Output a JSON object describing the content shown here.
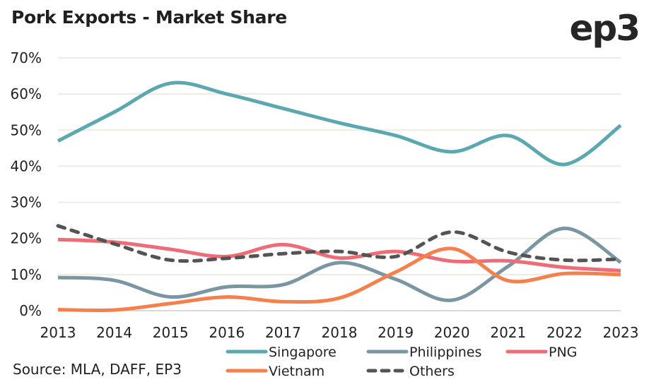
{
  "header": {
    "title": "Pork Exports - Market Share",
    "logo": "ep3"
  },
  "source": "Source: MLA, DAFF, EP3",
  "chart_data": {
    "type": "line",
    "title": "Pork Exports - Market Share",
    "xlabel": "",
    "ylabel": "",
    "x": [
      2013,
      2014,
      2015,
      2016,
      2017,
      2018,
      2019,
      2020,
      2021,
      2022,
      2023
    ],
    "x_tick_labels": [
      "2013",
      "2014",
      "2015",
      "2016",
      "2017",
      "2018",
      "2019",
      "2020",
      "2021",
      "2022",
      "2023"
    ],
    "ylim": [
      0,
      70
    ],
    "y_ticks": [
      0,
      10,
      20,
      30,
      40,
      50,
      60,
      70
    ],
    "y_tick_labels": [
      "0%",
      "10%",
      "20%",
      "30%",
      "40%",
      "50%",
      "60%",
      "70%"
    ],
    "grid": true,
    "smooth": true,
    "legend_position": "bottom",
    "series": [
      {
        "name": "Singapore",
        "color": "#5ba8b0",
        "dash": false,
        "values": [
          47,
          55,
          63,
          60,
          56,
          52,
          48.5,
          44,
          48.5,
          40.5,
          51.3
        ]
      },
      {
        "name": "Philippines",
        "color": "#7a96a3",
        "dash": false,
        "values": [
          9.2,
          8.4,
          3.8,
          6.6,
          7.2,
          13.3,
          8.7,
          2.9,
          12.3,
          22.8,
          13.4
        ]
      },
      {
        "name": "PNG",
        "color": "#ef6b76",
        "dash": false,
        "values": [
          19.7,
          19,
          17,
          15,
          18.3,
          14.6,
          16.4,
          13.7,
          13.8,
          12,
          11.1
        ]
      },
      {
        "name": "Vietnam",
        "color": "#f5804b",
        "dash": false,
        "values": [
          0.3,
          0.2,
          2,
          3.8,
          2.5,
          3.5,
          10.7,
          17.2,
          8.3,
          10.3,
          10
        ]
      },
      {
        "name": "Others",
        "color": "#545454",
        "dash": true,
        "values": [
          23.5,
          18.5,
          14,
          14.5,
          15.8,
          16.4,
          15,
          21.8,
          16.2,
          14,
          14.3
        ]
      }
    ]
  }
}
